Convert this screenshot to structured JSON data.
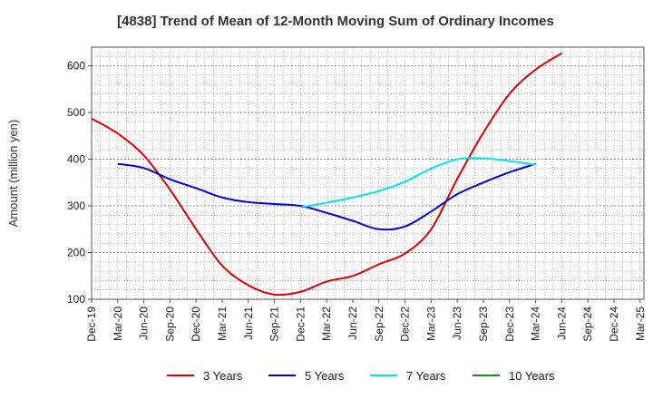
{
  "chart_data": {
    "type": "line",
    "title": "[4838]  Trend of Mean of 12-Month Moving Sum of Ordinary Incomes",
    "xlabel": "",
    "ylabel": "Amount (million yen)",
    "ylim": [
      100,
      640
    ],
    "yticks": [
      100,
      200,
      300,
      400,
      500,
      600
    ],
    "x_categories": [
      "Dec-19",
      "Mar-20",
      "Jun-20",
      "Sep-20",
      "Dec-20",
      "Mar-21",
      "Jun-21",
      "Sep-21",
      "Dec-21",
      "Mar-22",
      "Jun-22",
      "Sep-22",
      "Dec-22",
      "Mar-23",
      "Jun-23",
      "Sep-23",
      "Dec-23",
      "Mar-24",
      "Jun-24",
      "Sep-24",
      "Dec-24",
      "Mar-25"
    ],
    "grid": true,
    "legend_position": "bottom",
    "series": [
      {
        "name": "3 Years",
        "color": "#dd0000",
        "values": [
          487,
          455,
          408,
          335,
          250,
          172,
          130,
          110,
          116,
          138,
          150,
          175,
          198,
          250,
          358,
          457,
          540,
          592,
          627
        ]
      },
      {
        "name": "5 Years",
        "color": "#0000cc",
        "values": [
          null,
          390,
          381,
          357,
          338,
          318,
          308,
          304,
          300,
          285,
          268,
          250,
          256,
          288,
          325,
          350,
          372,
          390
        ]
      },
      {
        "name": "7 Years",
        "color": "#00e5ee",
        "values": [
          null,
          null,
          null,
          null,
          null,
          null,
          null,
          null,
          297,
          307,
          318,
          332,
          352,
          380,
          400,
          402,
          396,
          388
        ]
      },
      {
        "name": "10 Years",
        "color": "#228b22",
        "values": []
      }
    ]
  }
}
